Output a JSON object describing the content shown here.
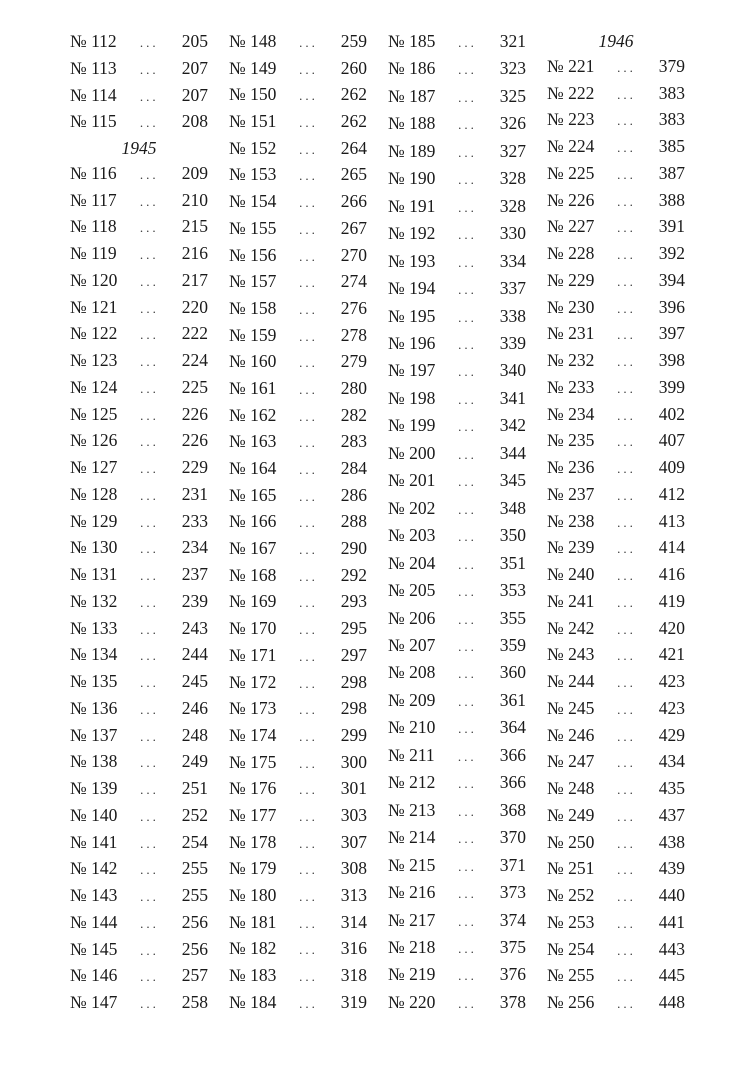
{
  "leader": "...",
  "columns": [
    [
      {
        "no": "№ 112",
        "page": "205"
      },
      {
        "no": "№ 113",
        "page": "207"
      },
      {
        "no": "№ 114",
        "page": "207"
      },
      {
        "no": "№ 115",
        "page": "208"
      },
      {
        "year": "1945"
      },
      {
        "no": "№ 116",
        "page": "209"
      },
      {
        "no": "№ 117",
        "page": "210"
      },
      {
        "no": "№ 118",
        "page": "215"
      },
      {
        "no": "№ 119",
        "page": "216"
      },
      {
        "no": "№ 120",
        "page": "217"
      },
      {
        "no": "№ 121",
        "page": "220"
      },
      {
        "no": "№ 122",
        "page": "222"
      },
      {
        "no": "№ 123",
        "page": "224"
      },
      {
        "no": "№ 124",
        "page": "225"
      },
      {
        "no": "№ 125",
        "page": "226"
      },
      {
        "no": "№ 126",
        "page": "226"
      },
      {
        "no": "№ 127",
        "page": "229"
      },
      {
        "no": "№ 128",
        "page": "231"
      },
      {
        "no": "№ 129",
        "page": "233"
      },
      {
        "no": "№ 130",
        "page": "234"
      },
      {
        "no": "№ 131",
        "page": "237"
      },
      {
        "no": "№ 132",
        "page": "239"
      },
      {
        "no": "№ 133",
        "page": "243"
      },
      {
        "no": "№ 134",
        "page": "244"
      },
      {
        "no": "№ 135",
        "page": "245"
      },
      {
        "no": "№ 136",
        "page": "246"
      },
      {
        "no": "№ 137",
        "page": "248"
      },
      {
        "no": "№ 138",
        "page": "249"
      },
      {
        "no": "№ 139",
        "page": "251"
      },
      {
        "no": "№ 140",
        "page": "252"
      },
      {
        "no": "№ 141",
        "page": "254"
      },
      {
        "no": "№ 142",
        "page": "255"
      },
      {
        "no": "№ 143",
        "page": "255"
      },
      {
        "no": "№ 144",
        "page": "256"
      },
      {
        "no": "№ 145",
        "page": "256"
      },
      {
        "no": "№ 146",
        "page": "257"
      },
      {
        "no": "№ 147",
        "page": "258"
      }
    ],
    [
      {
        "no": "№ 148",
        "page": "259"
      },
      {
        "no": "№ 149",
        "page": "260"
      },
      {
        "no": "№ 150",
        "page": "262"
      },
      {
        "no": "№ 151",
        "page": "262"
      },
      {
        "no": "№ 152",
        "page": "264"
      },
      {
        "no": "№ 153",
        "page": "265"
      },
      {
        "no": "№ 154",
        "page": "266"
      },
      {
        "no": "№ 155",
        "page": "267"
      },
      {
        "no": "№ 156",
        "page": "270"
      },
      {
        "no": "№ 157",
        "page": "274"
      },
      {
        "no": "№ 158",
        "page": "276"
      },
      {
        "no": "№ 159",
        "page": "278"
      },
      {
        "no": "№ 160",
        "page": "279"
      },
      {
        "no": "№ 161",
        "page": "280"
      },
      {
        "no": "№ 162",
        "page": "282"
      },
      {
        "no": "№ 163",
        "page": "283"
      },
      {
        "no": "№ 164",
        "page": "284"
      },
      {
        "no": "№ 165",
        "page": "286"
      },
      {
        "no": "№ 166",
        "page": "288"
      },
      {
        "no": "№ 167",
        "page": "290"
      },
      {
        "no": "№ 168",
        "page": "292"
      },
      {
        "no": "№ 169",
        "page": "293"
      },
      {
        "no": "№ 170",
        "page": "295"
      },
      {
        "no": "№ 171",
        "page": "297"
      },
      {
        "no": "№ 172",
        "page": "298"
      },
      {
        "no": "№ 173",
        "page": "298"
      },
      {
        "no": "№ 174",
        "page": "299"
      },
      {
        "no": "№ 175",
        "page": "300"
      },
      {
        "no": "№ 176",
        "page": "301"
      },
      {
        "no": "№ 177",
        "page": "303"
      },
      {
        "no": "№ 178",
        "page": "307"
      },
      {
        "no": "№ 179",
        "page": "308"
      },
      {
        "no": "№ 180",
        "page": "313"
      },
      {
        "no": "№ 181",
        "page": "314"
      },
      {
        "no": "№ 182",
        "page": "316"
      },
      {
        "no": "№ 183",
        "page": "318"
      },
      {
        "no": "№ 184",
        "page": "319"
      }
    ],
    [
      {
        "no": "№ 185",
        "page": "321"
      },
      {
        "no": "№ 186",
        "page": "323"
      },
      {
        "no": "№ 187",
        "page": "325"
      },
      {
        "no": "№ 188",
        "page": "326"
      },
      {
        "no": "№ 189",
        "page": "327"
      },
      {
        "no": "№ 190",
        "page": "328"
      },
      {
        "no": "№ 191",
        "page": "328"
      },
      {
        "no": "№ 192",
        "page": "330"
      },
      {
        "no": "№ 193",
        "page": "334"
      },
      {
        "no": "№ 194",
        "page": "337"
      },
      {
        "no": "№ 195",
        "page": "338"
      },
      {
        "no": "№ 196",
        "page": "339"
      },
      {
        "no": "№ 197",
        "page": "340"
      },
      {
        "no": "№ 198",
        "page": "341"
      },
      {
        "no": "№ 199",
        "page": "342"
      },
      {
        "no": "№ 200",
        "page": "344"
      },
      {
        "no": "№ 201",
        "page": "345"
      },
      {
        "no": "№ 202",
        "page": "348"
      },
      {
        "no": "№ 203",
        "page": "350"
      },
      {
        "no": "№ 204",
        "page": "351"
      },
      {
        "no": "№ 205",
        "page": "353"
      },
      {
        "no": "№ 206",
        "page": "355"
      },
      {
        "no": "№ 207",
        "page": "359"
      },
      {
        "no": "№ 208",
        "page": "360"
      },
      {
        "no": "№ 209",
        "page": "361"
      },
      {
        "no": "№ 210",
        "page": "364"
      },
      {
        "no": "№ 211",
        "page": "366"
      },
      {
        "no": "№ 212",
        "page": "366"
      },
      {
        "no": "№ 213",
        "page": "368"
      },
      {
        "no": "№ 214",
        "page": "370"
      },
      {
        "no": "№ 215",
        "page": "371"
      },
      {
        "no": "№ 216",
        "page": "373"
      },
      {
        "no": "№ 217",
        "page": "374"
      },
      {
        "no": "№ 218",
        "page": "375"
      },
      {
        "no": "№ 219",
        "page": "376"
      },
      {
        "no": "№ 220",
        "page": "378"
      }
    ],
    [
      {
        "year": "1946"
      },
      {
        "no": "№ 221",
        "page": "379"
      },
      {
        "no": "№ 222",
        "page": "383"
      },
      {
        "no": "№ 223",
        "page": "383"
      },
      {
        "no": "№ 224",
        "page": "385"
      },
      {
        "no": "№ 225",
        "page": "387"
      },
      {
        "no": "№ 226",
        "page": "388"
      },
      {
        "no": "№ 227",
        "page": "391"
      },
      {
        "no": "№ 228",
        "page": "392"
      },
      {
        "no": "№ 229",
        "page": "394"
      },
      {
        "no": "№ 230",
        "page": "396"
      },
      {
        "no": "№ 231",
        "page": "397"
      },
      {
        "no": "№ 232",
        "page": "398"
      },
      {
        "no": "№ 233",
        "page": "399"
      },
      {
        "no": "№ 234",
        "page": "402"
      },
      {
        "no": "№ 235",
        "page": "407"
      },
      {
        "no": "№ 236",
        "page": "409"
      },
      {
        "no": "№ 237",
        "page": "412"
      },
      {
        "no": "№ 238",
        "page": "413"
      },
      {
        "no": "№ 239",
        "page": "414"
      },
      {
        "no": "№ 240",
        "page": "416"
      },
      {
        "no": "№ 241",
        "page": "419"
      },
      {
        "no": "№ 242",
        "page": "420"
      },
      {
        "no": "№ 243",
        "page": "421"
      },
      {
        "no": "№ 244",
        "page": "423"
      },
      {
        "no": "№ 245",
        "page": "423"
      },
      {
        "no": "№ 246",
        "page": "429"
      },
      {
        "no": "№ 247",
        "page": "434"
      },
      {
        "no": "№ 248",
        "page": "435"
      },
      {
        "no": "№ 249",
        "page": "437"
      },
      {
        "no": "№ 250",
        "page": "438"
      },
      {
        "no": "№ 251",
        "page": "439"
      },
      {
        "no": "№ 252",
        "page": "440"
      },
      {
        "no": "№ 253",
        "page": "441"
      },
      {
        "no": "№ 254",
        "page": "443"
      },
      {
        "no": "№ 255",
        "page": "445"
      },
      {
        "no": "№ 256",
        "page": "448"
      }
    ]
  ]
}
